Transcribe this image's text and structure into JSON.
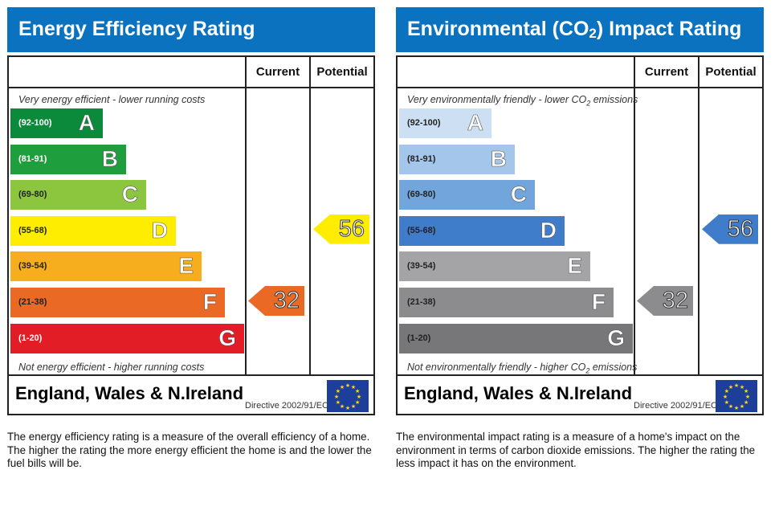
{
  "chart_data": [
    {
      "type": "bar",
      "title": "Energy Efficiency Rating",
      "columns": [
        "Current",
        "Potential"
      ],
      "top_note": "Very energy efficient - lower running costs",
      "bottom_note": "Not energy efficient - higher running costs",
      "bands": [
        {
          "range": "(92-100)",
          "letter": "A",
          "color": "#0c8a3c"
        },
        {
          "range": "(81-91)",
          "letter": "B",
          "color": "#1f9e3e"
        },
        {
          "range": "(69-80)",
          "letter": "C",
          "color": "#8cc63f"
        },
        {
          "range": "(55-68)",
          "letter": "D",
          "color": "#ffed00"
        },
        {
          "range": "(39-54)",
          "letter": "E",
          "color": "#f6ae1e"
        },
        {
          "range": "(21-38)",
          "letter": "F",
          "color": "#ea6a25"
        },
        {
          "range": "(1-20)",
          "letter": "G",
          "color": "#e21d25"
        }
      ],
      "current": 32,
      "potential": 56,
      "region": "England, Wales & N.Ireland",
      "directive": "Directive 2002/91/EC",
      "description": "The energy efficiency rating is a measure of the overall efficiency of a home. The higher the rating the more energy efficient the home is and the lower the fuel bills will be."
    },
    {
      "type": "bar",
      "title": "Environmental (CO2) Impact Rating",
      "columns": [
        "Current",
        "Potential"
      ],
      "top_note": "Very environmentally friendly - lower CO2 emissions",
      "bottom_note": "Not environmentally friendly - higher CO2 emissions",
      "bands": [
        {
          "range": "(92-100)",
          "letter": "A",
          "color": "#cde0f3"
        },
        {
          "range": "(81-91)",
          "letter": "B",
          "color": "#a3c6ea"
        },
        {
          "range": "(69-80)",
          "letter": "C",
          "color": "#72a5dc"
        },
        {
          "range": "(55-68)",
          "letter": "D",
          "color": "#3f7dcb"
        },
        {
          "range": "(39-54)",
          "letter": "E",
          "color": "#a4a4a6"
        },
        {
          "range": "(21-38)",
          "letter": "F",
          "color": "#8c8c8e"
        },
        {
          "range": "(1-20)",
          "letter": "G",
          "color": "#77777a"
        }
      ],
      "current": 32,
      "potential": 56,
      "region": "England, Wales & N.Ireland",
      "directive": "Directive 2002/91/EC",
      "description": "The environmental impact rating is a measure of a home's impact on the environment in terms of carbon dioxide emissions. The higher the rating the less impact it has on the environment."
    }
  ]
}
